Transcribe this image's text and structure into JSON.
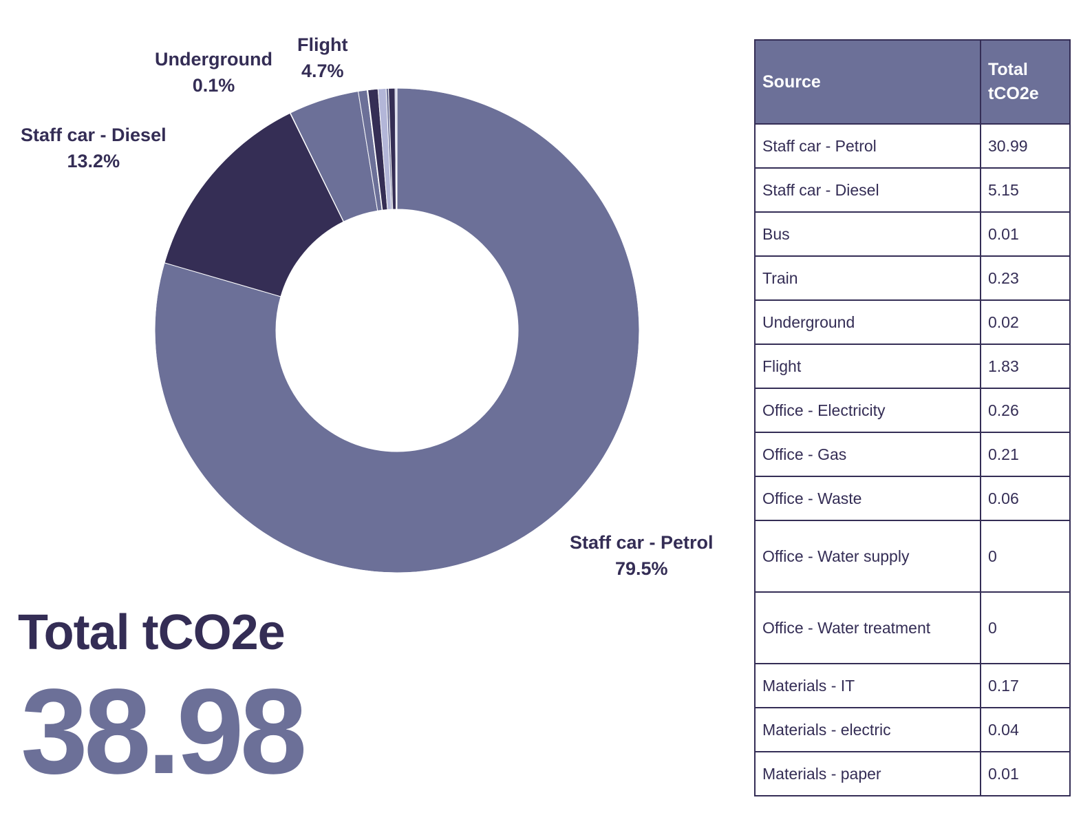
{
  "chart_data": {
    "type": "pie",
    "labels": [
      "Staff car - Petrol",
      "Staff car - Diesel",
      "Bus",
      "Train",
      "Underground",
      "Flight",
      "Office - Electricity",
      "Office - Gas",
      "Office - Waste",
      "Office - Water supply",
      "Office - Water treatment",
      "Materials - IT",
      "Materials - electric",
      "Materials - paper"
    ],
    "values": [
      30.99,
      5.15,
      0.01,
      0.23,
      0.02,
      1.83,
      0.26,
      0.21,
      0.06,
      0,
      0,
      0.17,
      0.04,
      0.01
    ],
    "slice_labels": [
      {
        "name": "Staff car - Petrol",
        "pct": "79.5%"
      },
      {
        "name": "Staff car - Diesel",
        "pct": "13.2%"
      },
      {
        "name": "Underground",
        "pct": "0.1%"
      },
      {
        "name": "Flight",
        "pct": "4.7%"
      }
    ],
    "colors": {
      "main": "#6c7098",
      "dark": "#352e55",
      "blue": "#5560a6",
      "light": "#b3b6d8",
      "white": "#ffffff"
    },
    "donut": true
  },
  "total": {
    "title": "Total tCO2e",
    "value": "38.98"
  },
  "table": {
    "headers": [
      "Source",
      "Total\ntCO2e"
    ],
    "rows": [
      [
        "Staff car - Petrol",
        "30.99"
      ],
      [
        "Staff car - Diesel",
        "5.15"
      ],
      [
        "Bus",
        "0.01"
      ],
      [
        "Train",
        "0.23"
      ],
      [
        "Underground",
        "0.02"
      ],
      [
        "Flight",
        "1.83"
      ],
      [
        "Office - Electricity",
        "0.26"
      ],
      [
        "Office - Gas",
        "0.21"
      ],
      [
        "Office - Waste",
        "0.06"
      ],
      [
        "Office - Water supply",
        "0"
      ],
      [
        "Office - Water treatment",
        "0"
      ],
      [
        "Materials - IT",
        "0.17"
      ],
      [
        "Materials - electric",
        "0.04"
      ],
      [
        "Materials - paper",
        "0.01"
      ]
    ]
  },
  "header_colors": {
    "fill": "#6c7098",
    "text": "#ffffff",
    "border": "#342d55"
  }
}
